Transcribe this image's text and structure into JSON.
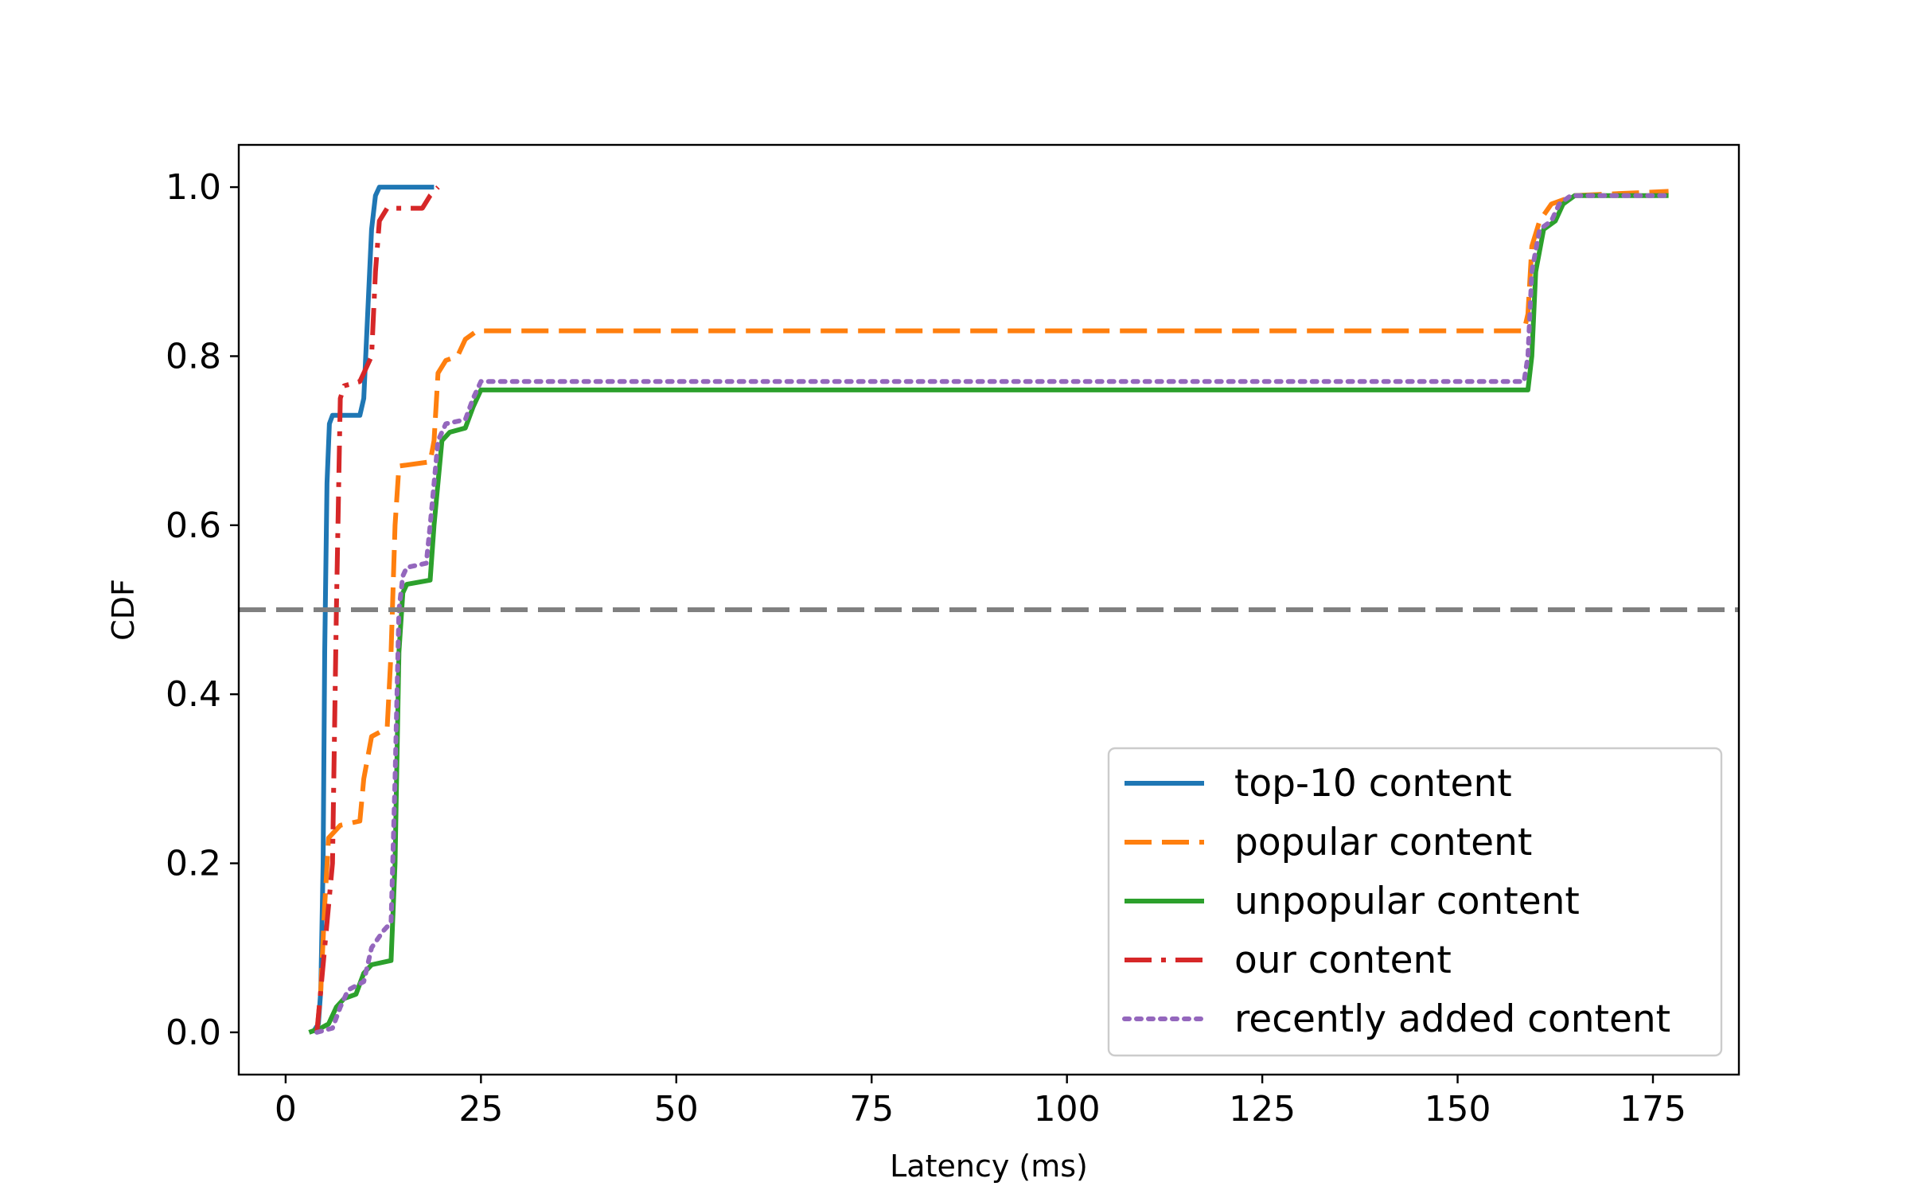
{
  "chart_data": {
    "type": "line",
    "title": "",
    "xlabel": "Latency (ms)",
    "ylabel": "CDF",
    "xlim": [
      -6,
      186
    ],
    "ylim": [
      -0.05,
      1.05
    ],
    "xticks": [
      0,
      25,
      50,
      75,
      100,
      125,
      150,
      175
    ],
    "yticks": [
      0.0,
      0.2,
      0.4,
      0.6,
      0.8,
      1.0
    ],
    "xtick_labels": [
      "0",
      "25",
      "50",
      "75",
      "100",
      "125",
      "150",
      "175"
    ],
    "ytick_labels": [
      "0.0",
      "0.2",
      "0.4",
      "0.6",
      "0.8",
      "1.0"
    ],
    "grid": false,
    "legend_position": "lower-right",
    "reference_line": {
      "y": 0.5,
      "color": "#808080",
      "style": "dashed"
    },
    "series": [
      {
        "name": "top-10 content",
        "color": "#1f77b4",
        "style": "solid",
        "points": [
          [
            3.5,
            0
          ],
          [
            4.2,
            0.01
          ],
          [
            4.5,
            0.05
          ],
          [
            4.8,
            0.2
          ],
          [
            5.0,
            0.45
          ],
          [
            5.3,
            0.65
          ],
          [
            5.6,
            0.72
          ],
          [
            6.0,
            0.73
          ],
          [
            9.5,
            0.73
          ],
          [
            10.0,
            0.75
          ],
          [
            10.5,
            0.85
          ],
          [
            11.0,
            0.95
          ],
          [
            11.5,
            0.99
          ],
          [
            12.0,
            1.0
          ],
          [
            19.0,
            1.0
          ]
        ]
      },
      {
        "name": "popular content",
        "color": "#ff7f0e",
        "style": "dashed",
        "points": [
          [
            4.0,
            0
          ],
          [
            4.5,
            0.05
          ],
          [
            5.0,
            0.15
          ],
          [
            5.5,
            0.23
          ],
          [
            7.0,
            0.245
          ],
          [
            9.5,
            0.25
          ],
          [
            10.0,
            0.3
          ],
          [
            11.0,
            0.35
          ],
          [
            13.0,
            0.36
          ],
          [
            13.5,
            0.45
          ],
          [
            14.0,
            0.6
          ],
          [
            14.5,
            0.67
          ],
          [
            18.5,
            0.675
          ],
          [
            19.0,
            0.7
          ],
          [
            19.5,
            0.78
          ],
          [
            20.5,
            0.795
          ],
          [
            22.0,
            0.8
          ],
          [
            23.0,
            0.82
          ],
          [
            24.5,
            0.83
          ],
          [
            158.5,
            0.83
          ],
          [
            159.0,
            0.85
          ],
          [
            159.5,
            0.93
          ],
          [
            160.5,
            0.96
          ],
          [
            162.0,
            0.98
          ],
          [
            165.0,
            0.99
          ],
          [
            177.0,
            0.995
          ]
        ]
      },
      {
        "name": "unpopular content",
        "color": "#2ca02c",
        "style": "solid",
        "points": [
          [
            3.0,
            0
          ],
          [
            4.5,
            0.005
          ],
          [
            5.5,
            0.01
          ],
          [
            6.5,
            0.03
          ],
          [
            7.5,
            0.04
          ],
          [
            9.0,
            0.045
          ],
          [
            10.0,
            0.07
          ],
          [
            11.0,
            0.08
          ],
          [
            13.5,
            0.085
          ],
          [
            14.0,
            0.2
          ],
          [
            14.5,
            0.45
          ],
          [
            15.0,
            0.52
          ],
          [
            15.5,
            0.53
          ],
          [
            18.5,
            0.535
          ],
          [
            19.0,
            0.6
          ],
          [
            20.0,
            0.7
          ],
          [
            21.0,
            0.71
          ],
          [
            23.0,
            0.715
          ],
          [
            24.0,
            0.74
          ],
          [
            25.0,
            0.76
          ],
          [
            159.0,
            0.76
          ],
          [
            159.5,
            0.8
          ],
          [
            160.0,
            0.9
          ],
          [
            161.0,
            0.95
          ],
          [
            162.5,
            0.96
          ],
          [
            163.5,
            0.98
          ],
          [
            165.0,
            0.99
          ],
          [
            177.0,
            0.99
          ]
        ]
      },
      {
        "name": "our content",
        "color": "#d62728",
        "style": "dashdot",
        "points": [
          [
            4.0,
            0
          ],
          [
            4.5,
            0.05
          ],
          [
            5.0,
            0.1
          ],
          [
            5.5,
            0.15
          ],
          [
            6.0,
            0.2
          ],
          [
            6.5,
            0.5
          ],
          [
            7.0,
            0.75
          ],
          [
            7.5,
            0.765
          ],
          [
            9.5,
            0.77
          ],
          [
            10.0,
            0.78
          ],
          [
            11.0,
            0.8
          ],
          [
            11.5,
            0.9
          ],
          [
            12.0,
            0.96
          ],
          [
            13.0,
            0.975
          ],
          [
            17.5,
            0.975
          ],
          [
            18.5,
            0.99
          ],
          [
            19.5,
            1.0
          ]
        ]
      },
      {
        "name": "recently added content",
        "color": "#9467bd",
        "style": "dotted",
        "points": [
          [
            4.0,
            0
          ],
          [
            6.0,
            0.005
          ],
          [
            7.0,
            0.03
          ],
          [
            8.0,
            0.05
          ],
          [
            10.0,
            0.06
          ],
          [
            11.0,
            0.1
          ],
          [
            12.5,
            0.12
          ],
          [
            13.5,
            0.13
          ],
          [
            14.0,
            0.3
          ],
          [
            14.5,
            0.5
          ],
          [
            15.0,
            0.54
          ],
          [
            15.5,
            0.55
          ],
          [
            18.0,
            0.555
          ],
          [
            18.5,
            0.6
          ],
          [
            19.5,
            0.7
          ],
          [
            20.5,
            0.72
          ],
          [
            23.0,
            0.725
          ],
          [
            24.0,
            0.75
          ],
          [
            25.0,
            0.77
          ],
          [
            158.5,
            0.77
          ],
          [
            159.0,
            0.8
          ],
          [
            159.5,
            0.9
          ],
          [
            160.5,
            0.95
          ],
          [
            162.0,
            0.96
          ],
          [
            163.0,
            0.98
          ],
          [
            164.5,
            0.99
          ],
          [
            177.0,
            0.99
          ]
        ]
      }
    ]
  }
}
